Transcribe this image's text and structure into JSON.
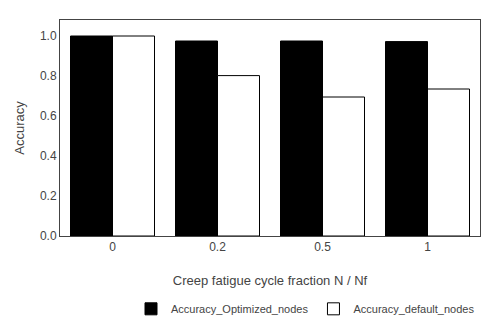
{
  "chart_data": {
    "type": "bar",
    "categories": [
      "0",
      "0.2",
      "0.5",
      "1"
    ],
    "series": [
      {
        "name": "Accuracy_Optimized_nodes",
        "color": "#000000",
        "values": [
          1.0,
          0.975,
          0.975,
          0.972
        ]
      },
      {
        "name": "Accuracy_default_nodes",
        "color": "#ffffff",
        "values": [
          1.0,
          0.802,
          0.695,
          0.735
        ]
      }
    ],
    "xlabel": "Creep fatigue cycle fraction N / Nf",
    "ylabel": "Accuracy",
    "ylim": [
      0,
      1.08
    ],
    "yticks": [
      {
        "value": 0,
        "label": "0.0"
      },
      {
        "value": 0.2,
        "label": "0.2"
      },
      {
        "value": 0.4,
        "label": "0.4"
      },
      {
        "value": 0.6,
        "label": "0.6"
      },
      {
        "value": 0.8,
        "label": "0.8"
      },
      {
        "value": 1.0,
        "label": "1.0"
      }
    ],
    "grid": false,
    "legend": "lower right"
  }
}
